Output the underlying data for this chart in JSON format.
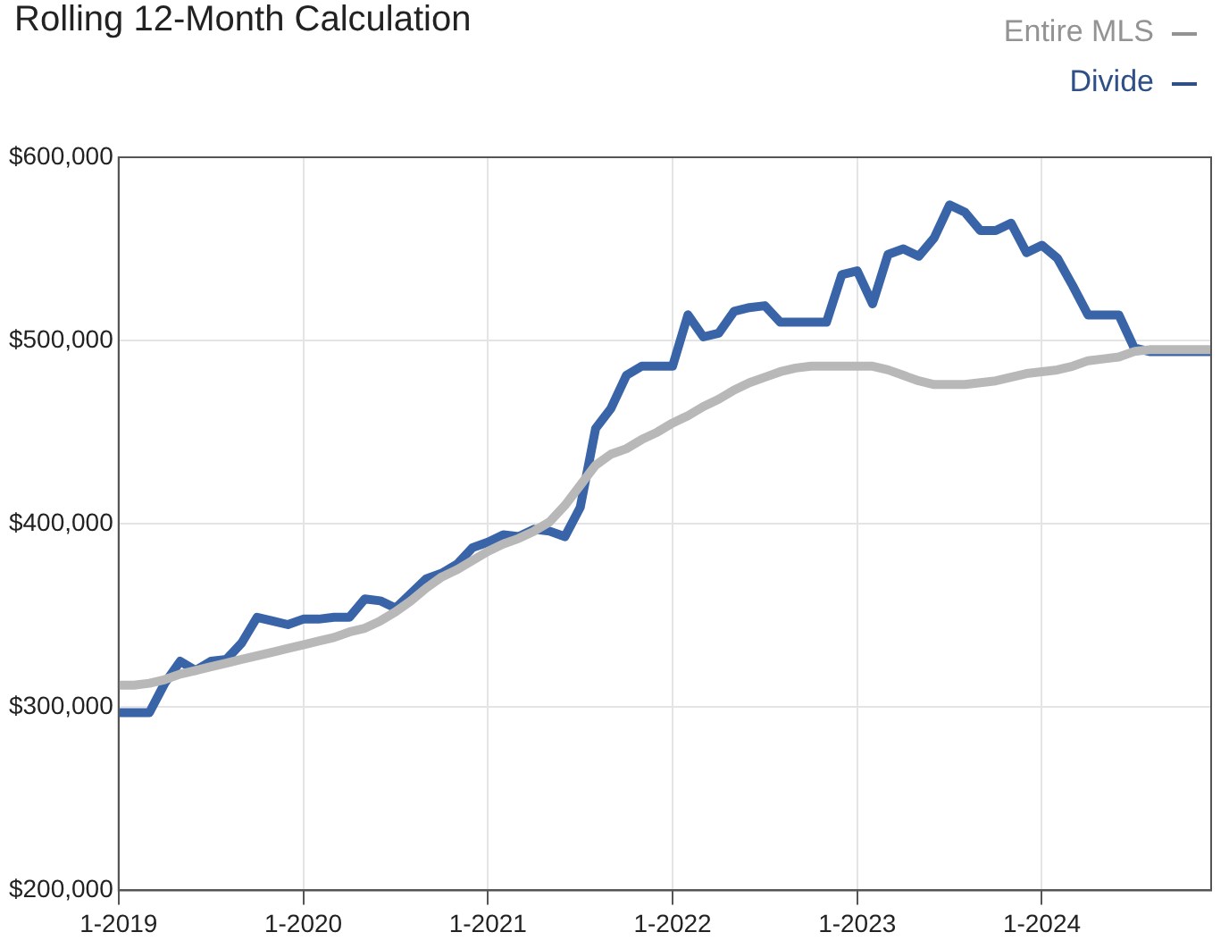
{
  "chart_data": {
    "type": "line",
    "title": "Rolling 12-Month Calculation",
    "x": [
      "2019-01",
      "2019-02",
      "2019-03",
      "2019-04",
      "2019-05",
      "2019-06",
      "2019-07",
      "2019-08",
      "2019-09",
      "2019-10",
      "2019-11",
      "2019-12",
      "2020-01",
      "2020-02",
      "2020-03",
      "2020-04",
      "2020-05",
      "2020-06",
      "2020-07",
      "2020-08",
      "2020-09",
      "2020-10",
      "2020-11",
      "2020-12",
      "2021-01",
      "2021-02",
      "2021-03",
      "2021-04",
      "2021-05",
      "2021-06",
      "2021-07",
      "2021-08",
      "2021-09",
      "2021-10",
      "2021-11",
      "2021-12",
      "2022-01",
      "2022-02",
      "2022-03",
      "2022-04",
      "2022-05",
      "2022-06",
      "2022-07",
      "2022-08",
      "2022-09",
      "2022-10",
      "2022-11",
      "2022-12",
      "2023-01",
      "2023-02",
      "2023-03",
      "2023-04",
      "2023-05",
      "2023-06",
      "2023-07",
      "2023-08",
      "2023-09",
      "2023-10",
      "2023-11",
      "2023-12",
      "2024-01",
      "2024-02",
      "2024-03",
      "2024-04",
      "2024-05",
      "2024-06",
      "2024-07",
      "2024-08",
      "2024-09",
      "2024-10",
      "2024-11",
      "2024-12"
    ],
    "series": [
      {
        "name": "Entire MLS",
        "color": "#b8b8b8",
        "values": [
          312000,
          312000,
          313000,
          315000,
          318000,
          320000,
          322000,
          324000,
          326000,
          328000,
          330000,
          332000,
          334000,
          336000,
          338000,
          341000,
          343000,
          347000,
          352000,
          358000,
          365000,
          371000,
          375000,
          380000,
          385000,
          389000,
          392000,
          396000,
          401000,
          410000,
          421000,
          432000,
          438000,
          441000,
          446000,
          450000,
          455000,
          459000,
          464000,
          468000,
          473000,
          477000,
          480000,
          483000,
          485000,
          486000,
          486000,
          486000,
          486000,
          486000,
          484000,
          481000,
          478000,
          476000,
          476000,
          476000,
          477000,
          478000,
          480000,
          482000,
          483000,
          484000,
          486000,
          489000,
          490000,
          491000,
          494000,
          495000,
          495000,
          495000,
          495000,
          495000
        ]
      },
      {
        "name": "Divide",
        "color": "#3a64a8",
        "values": [
          297000,
          297000,
          297000,
          313000,
          325000,
          320000,
          325000,
          326000,
          335000,
          349000,
          347000,
          345000,
          348000,
          348000,
          349000,
          349000,
          359000,
          358000,
          354000,
          362000,
          370000,
          373000,
          378000,
          387000,
          390000,
          394000,
          393000,
          397000,
          396000,
          393000,
          409000,
          452000,
          463000,
          481000,
          486000,
          486000,
          486000,
          514000,
          502000,
          504000,
          516000,
          518000,
          519000,
          510000,
          510000,
          510000,
          510000,
          536000,
          538000,
          520000,
          547000,
          550000,
          546000,
          556000,
          574000,
          570000,
          560000,
          560000,
          564000,
          548000,
          552000,
          545000,
          530000,
          514000,
          514000,
          514000,
          496000,
          494000,
          494000,
          494000,
          494000,
          494000
        ]
      }
    ],
    "xlim": [
      "2019-01",
      "2024-12"
    ],
    "xticks": [
      {
        "value": "2019-01",
        "label": "1-2019"
      },
      {
        "value": "2020-01",
        "label": "1-2020"
      },
      {
        "value": "2021-01",
        "label": "1-2021"
      },
      {
        "value": "2022-01",
        "label": "1-2022"
      },
      {
        "value": "2023-01",
        "label": "1-2023"
      },
      {
        "value": "2024-01",
        "label": "1-2024"
      }
    ],
    "ylim": [
      200000,
      600000
    ],
    "yticks": [
      {
        "value": 200000,
        "label": "$200,000"
      },
      {
        "value": 300000,
        "label": "$300,000"
      },
      {
        "value": 400000,
        "label": "$400,000"
      },
      {
        "value": 500000,
        "label": "$500,000"
      },
      {
        "value": 600000,
        "label": "$600,000"
      }
    ],
    "grid": true,
    "legend": "top right",
    "marker": "none",
    "line_style": "solid"
  }
}
